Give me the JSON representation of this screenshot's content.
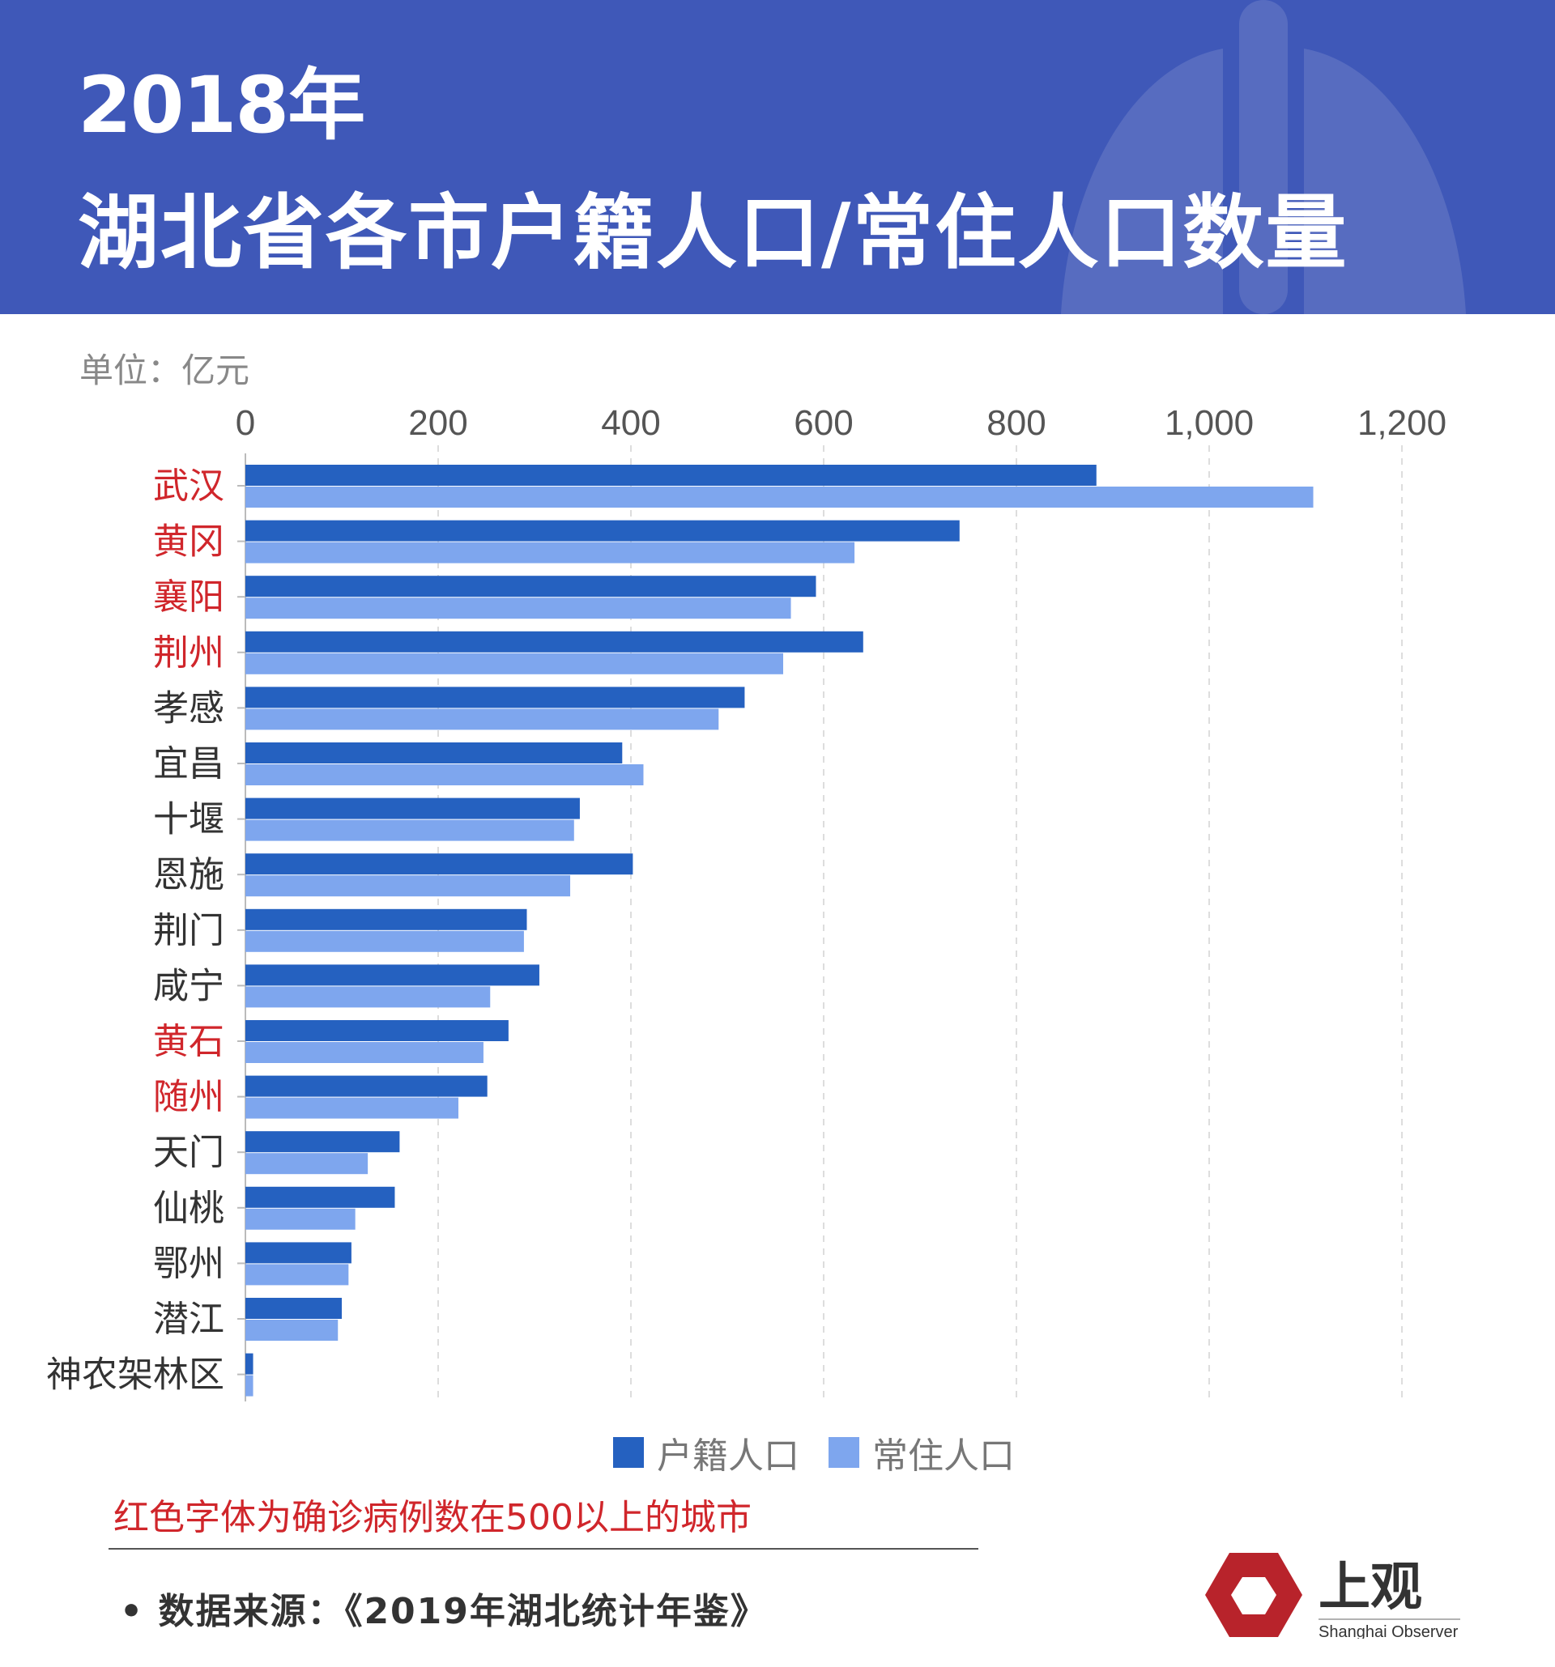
{
  "header": {
    "title_line1": "2018年",
    "title_line2": "湖北省各市户籍人口/常住人口数量"
  },
  "unit_label": "单位：亿元",
  "colors": {
    "header_bg": "#3f58b8",
    "series_registered": "#2561c0",
    "series_resident": "#7ea6ee",
    "highlight": "#d0262b"
  },
  "chart_data": {
    "type": "bar",
    "orientation": "horizontal",
    "categories": [
      "武汉",
      "黄冈",
      "襄阳",
      "荆州",
      "孝感",
      "宜昌",
      "十堰",
      "恩施",
      "荆门",
      "咸宁",
      "黄石",
      "随州",
      "天门",
      "仙桃",
      "鄂州",
      "潜江",
      "神农架林区"
    ],
    "highlighted_categories": [
      "武汉",
      "黄冈",
      "襄阳",
      "荆州",
      "黄石",
      "随州"
    ],
    "series": [
      {
        "name": "户籍人口",
        "values": [
          883,
          741,
          592,
          641,
          518,
          391,
          347,
          402,
          292,
          305,
          273,
          251,
          160,
          155,
          110,
          100,
          8
        ]
      },
      {
        "name": "常住人口",
        "values": [
          1108,
          632,
          566,
          558,
          491,
          413,
          341,
          337,
          289,
          254,
          247,
          221,
          127,
          114,
          107,
          96,
          8
        ]
      }
    ],
    "xlim": [
      0,
      1200
    ],
    "xticks": [
      "0",
      "200",
      "400",
      "600",
      "800",
      "1,000",
      "1,200"
    ],
    "tick_values": [
      0,
      200,
      400,
      600,
      800,
      1000,
      1200
    ],
    "grid": true,
    "legend_placement": "bottom"
  },
  "legend": {
    "items": [
      "户籍人口",
      "常住人口"
    ]
  },
  "note": "红色字体为确诊病例数在500以上的城市",
  "source": "•  数据来源：《2019年湖北统计年鉴》",
  "logo": {
    "text": "上观",
    "subtext": "Shanghai Observer"
  }
}
